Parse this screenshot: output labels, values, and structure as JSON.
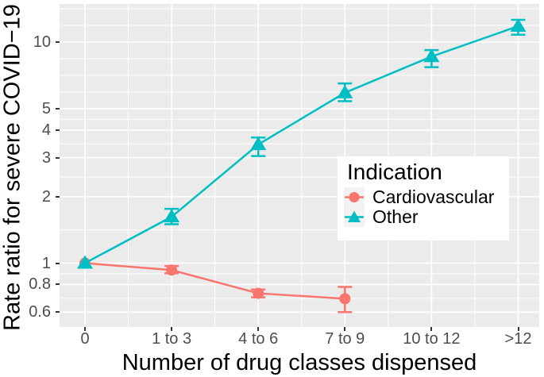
{
  "figure": {
    "background": "#FFFFFF",
    "panel_background": "#EBEBEB",
    "gridline_color": "#FFFFFF",
    "tick_mark_color": "#333333",
    "tick_label_color": "#4D4D4D",
    "axis_title_color": "#000000",
    "legend_key_background": "#F2F2F2"
  },
  "chart_data": {
    "type": "line",
    "title": "",
    "xlabel": "Number of drug classes dispensed",
    "ylabel": "Rate ratio for severe COVID−19",
    "y_scale": "log10",
    "ylim": [
      0.51,
      14.8
    ],
    "grid": true,
    "categories": [
      "0",
      "1 to 3",
      "4 to 6",
      "7 to 9",
      "10 to 12",
      ">12"
    ],
    "y_ticks": [
      {
        "value": 10,
        "label": "10"
      },
      {
        "value": 5,
        "label": "5"
      },
      {
        "value": 4,
        "label": "4"
      },
      {
        "value": 3,
        "label": "3"
      },
      {
        "value": 2,
        "label": "2"
      },
      {
        "value": 1,
        "label": "1"
      },
      {
        "value": 0.8,
        "label": "0.8"
      },
      {
        "value": 0.6,
        "label": "0.6"
      }
    ],
    "y_minor_breaks": [
      0.693,
      0.894,
      1.414,
      2.449,
      3.464,
      4.472,
      5.946,
      7.071,
      8.409,
      11.892,
      14.142
    ],
    "legend": {
      "title": "Indication",
      "position": "inside-right"
    },
    "series": [
      {
        "name": "Cardiovascular",
        "color": "#F8766D",
        "marker": "circle",
        "values": [
          1.0,
          0.93,
          0.73,
          0.69
        ],
        "ci_low": [
          null,
          0.9,
          0.7,
          0.6
        ],
        "ci_high": [
          null,
          0.97,
          0.76,
          0.78
        ]
      },
      {
        "name": "Other",
        "color": "#00BFC4",
        "marker": "triangle",
        "values": [
          1.0,
          1.62,
          3.44,
          5.9,
          8.6,
          11.8
        ],
        "ci_low": [
          null,
          1.5,
          3.05,
          5.4,
          7.7,
          10.8
        ],
        "ci_high": [
          null,
          1.76,
          3.7,
          6.5,
          9.2,
          12.6
        ]
      }
    ]
  }
}
